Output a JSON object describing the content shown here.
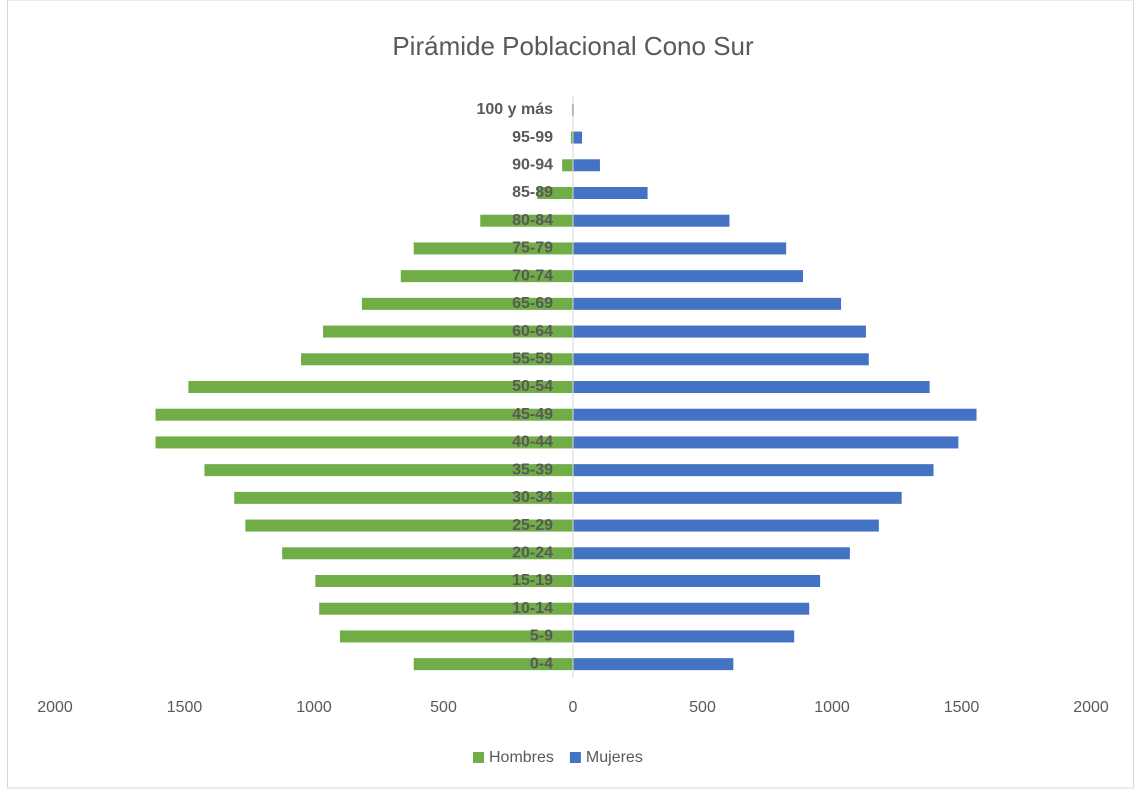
{
  "chart_data": {
    "type": "bar",
    "orientation": "horizontal",
    "title": "Pirámide Poblacional Cono Sur",
    "categories": [
      "0-4",
      "5-9",
      "10-14",
      "15-19",
      "20-24",
      "25-29",
      "30-34",
      "35-39",
      "40-44",
      "45-49",
      "50-54",
      "55-59",
      "60-64",
      "65-69",
      "70-74",
      "75-79",
      "80-84",
      "85-89",
      "90-94",
      "95-99",
      "100 y más"
    ],
    "series": [
      {
        "name": "Hombres",
        "color": "#70ad47",
        "values": [
          -615,
          -900,
          -980,
          -995,
          -1123,
          -1265,
          -1308,
          -1423,
          -1612,
          -1612,
          -1485,
          -1050,
          -965,
          -815,
          -665,
          -615,
          -358,
          -138,
          -42,
          -8,
          -4
        ]
      },
      {
        "name": "Mujeres",
        "color": "#4472c4",
        "values": [
          619,
          854,
          912,
          954,
          1069,
          1181,
          1269,
          1392,
          1488,
          1558,
          1377,
          1142,
          1131,
          1035,
          888,
          823,
          604,
          288,
          104,
          35,
          3
        ]
      }
    ],
    "xlim": [
      -2000,
      2000
    ],
    "xticks": [
      {
        "value": -2000,
        "label": "2000"
      },
      {
        "value": -1500,
        "label": "1500"
      },
      {
        "value": -1000,
        "label": "1000"
      },
      {
        "value": -500,
        "label": "500"
      },
      0,
      500,
      1000,
      1500,
      2000
    ],
    "legend": "bottom",
    "grid": false
  }
}
